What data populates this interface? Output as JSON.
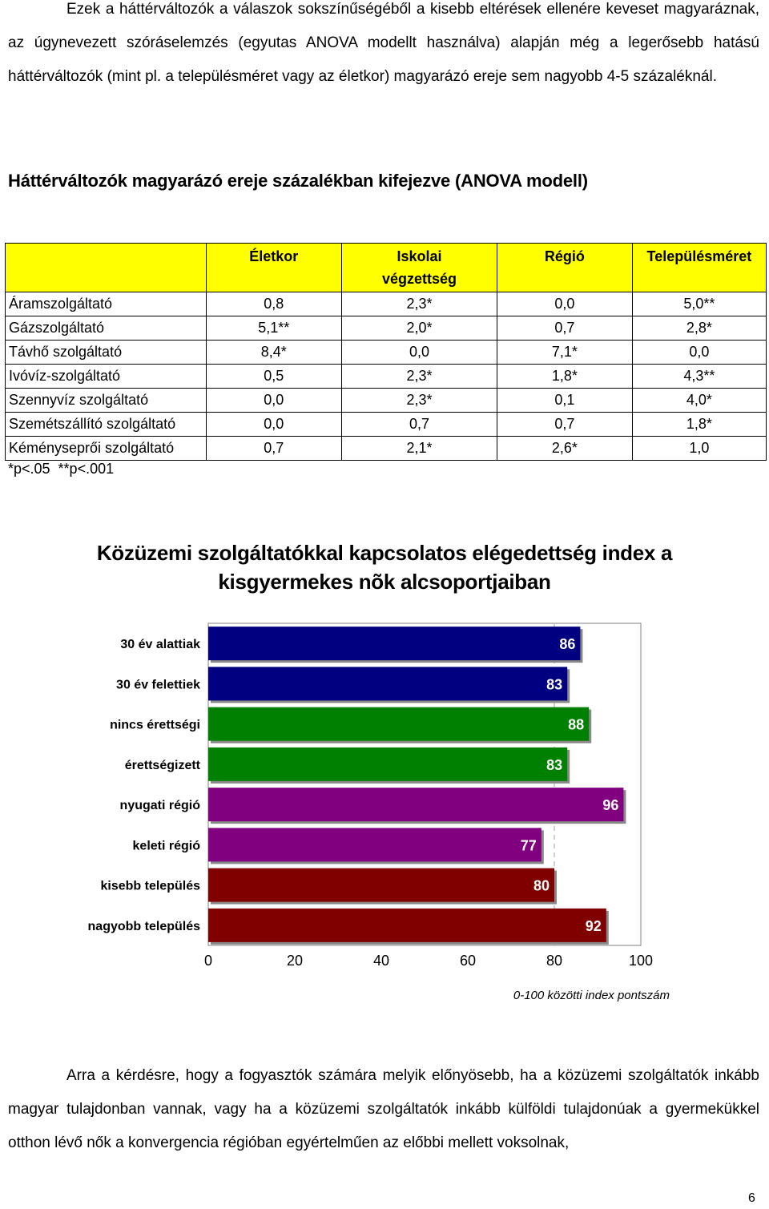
{
  "intro_paragraph": "Ezek a háttérváltozók a válaszok sokszínűségéből a kisebb eltérések ellenére keveset magyaráznak, az úgynevezett szóráselemzés (egyutas ANOVA modellt használva) alapján még a legerősebb hatású háttérváltozók (mint pl. a településméret vagy az életkor) magyarázó ereje sem nagyobb 4-5 százaléknál.",
  "table": {
    "title": "Háttérváltozók magyarázó ereje százalékban kifejezve (ANOVA modell)",
    "headers": [
      "",
      "Életkor",
      "Iskolai végzettség",
      "Régió",
      "Településméret"
    ],
    "rows": [
      {
        "label": "Áramszolgáltató",
        "values": [
          "0,8",
          "2,3*",
          "0,0",
          "5,0**"
        ]
      },
      {
        "label": "Gázszolgáltató",
        "values": [
          "5,1**",
          "2,0*",
          "0,7",
          "2,8*"
        ]
      },
      {
        "label": "Távhő szolgáltató",
        "values": [
          "8,4*",
          "0,0",
          "7,1*",
          "0,0"
        ]
      },
      {
        "label": "Ivóvíz-szolgáltató",
        "values": [
          "0,5",
          "2,3*",
          "1,8*",
          "4,3**"
        ]
      },
      {
        "label": "Szennyvíz szolgáltató",
        "values": [
          "0,0",
          "2,3*",
          "0,1",
          "4,0*"
        ]
      },
      {
        "label": "Szemétszállító szolgáltató",
        "values": [
          "0,0",
          "0,7",
          "0,7",
          "1,8*"
        ]
      },
      {
        "label": "Kéményseprői szolgáltató",
        "values": [
          "0,7",
          "2,1*",
          "2,6*",
          "1,0"
        ]
      }
    ],
    "footnote": "*p<.05  **p<.001"
  },
  "chart_data": {
    "type": "bar",
    "orientation": "horizontal",
    "title": "Közüzemi szolgáltatókkal kapcsolatos elégedettség index a kisgyermekes nõk alcsoportjaiban",
    "categories": [
      "30 év alattiak",
      "30 év felettiek",
      "nincs érettségi",
      "érettségizett",
      "nyugati régió",
      "keleti régió",
      "kisebb település",
      "nagyobb település"
    ],
    "values": [
      86,
      83,
      88,
      83,
      96,
      77,
      80,
      92
    ],
    "colors": [
      "#000080",
      "#000080",
      "#008000",
      "#008000",
      "#800080",
      "#800080",
      "#800000",
      "#800000"
    ],
    "xlim": [
      0,
      100
    ],
    "xticks": [
      0,
      20,
      40,
      60,
      80,
      100
    ],
    "xlabel": "0-100 közötti index pontszám",
    "data_labels": true
  },
  "closing_paragraph": "Arra a kérdésre, hogy a fogyasztók számára melyik előnyösebb, ha a közüzemi szolgáltatók inkább magyar tulajdonban vannak, vagy ha a közüzemi szolgáltatók inkább külföldi tulajdonúak a gyermekükkel otthon lévő nők a konvergencia régióban egyértelműen az előbbi mellett voksolnak,",
  "page_number": "6"
}
